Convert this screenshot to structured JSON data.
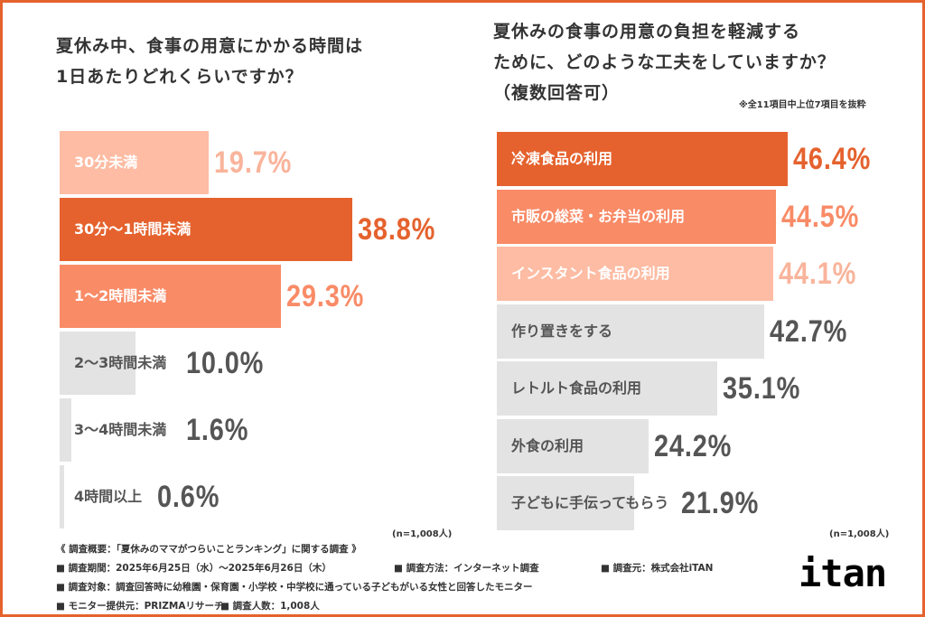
{
  "chart_data": [
    {
      "type": "bar",
      "orientation": "horizontal",
      "title": "夏休み中、食事の用意にかかる時間は\n1日あたりどれくらいですか？",
      "categories": [
        "30分未満",
        "30分～1時間未満",
        "1～2時間未満",
        "2～3時間未満",
        "3～4時間未満",
        "4時間以上"
      ],
      "values": [
        19.7,
        38.8,
        29.3,
        10.0,
        1.6,
        0.6
      ],
      "value_labels": [
        "19.7%",
        "38.8%",
        "29.3%",
        "10.0%",
        "1.6%",
        "0.6%"
      ],
      "bar_colors": [
        "#FDBCA3",
        "#E5622E",
        "#F98B67",
        "#E3E3E3",
        "#E3E3E3",
        "#E3E3E3"
      ],
      "label_colors": [
        "#FFFFFF",
        "#FFFFFF",
        "#FFFFFF",
        "#555555",
        "#555555",
        "#555555"
      ],
      "value_colors": [
        "#F9B49B",
        "#E5622E",
        "#F98B67",
        "#555555",
        "#555555",
        "#555555"
      ],
      "sample_note": "(n=1,008人)"
    },
    {
      "type": "bar",
      "orientation": "horizontal",
      "title": "夏休みの食事の用意の負担を軽減する\nために、どのような工夫をしていますか？\n（複数回答可）",
      "subnote": "※全11項目中上位7項目を抜粋",
      "categories": [
        "冷凍食品の利用",
        "市販の総菜・お弁当の利用",
        "インスタント食品の利用",
        "作り置きをする",
        "レトルト食品の利用",
        "外食の利用",
        "子どもに手伝ってもらう"
      ],
      "values": [
        46.4,
        44.5,
        44.1,
        42.7,
        35.1,
        24.2,
        21.9
      ],
      "value_labels": [
        "46.4%",
        "44.5%",
        "44.1%",
        "42.7%",
        "35.1%",
        "24.2%",
        "21.9%"
      ],
      "bar_colors": [
        "#E5622E",
        "#F98B67",
        "#FDBCA3",
        "#E3E3E3",
        "#E3E3E3",
        "#E3E3E3",
        "#E3E3E3"
      ],
      "label_colors": [
        "#FFFFFF",
        "#FFFFFF",
        "#FFFFFF",
        "#555555",
        "#555555",
        "#555555",
        "#555555"
      ],
      "value_colors": [
        "#E5622E",
        "#F98B67",
        "#F9B49B",
        "#555555",
        "#555555",
        "#555555",
        "#555555"
      ],
      "sample_note": "(n=1,008人)"
    }
  ],
  "footer": {
    "heading": "《 調査概要：「夏休みのママがつらいことランキング」に関する調査 》",
    "period": "■ 調査期間：2025年6月25日（水）～2025年6月26日（木）",
    "method": "■ 調査方法：インターネット調査",
    "source": "■ 調査元：株式会社iTAN",
    "target": "■ 調査対象：調査回答時に幼稚園・保育園・小学校・中学校に通っている子どもがいる女性と回答したモニター",
    "provider": "■ モニター提供元：PRIZMAリサーチ",
    "count": "■ 調査人数：1,008人"
  },
  "logo": "itan",
  "accent": "#E5622E"
}
